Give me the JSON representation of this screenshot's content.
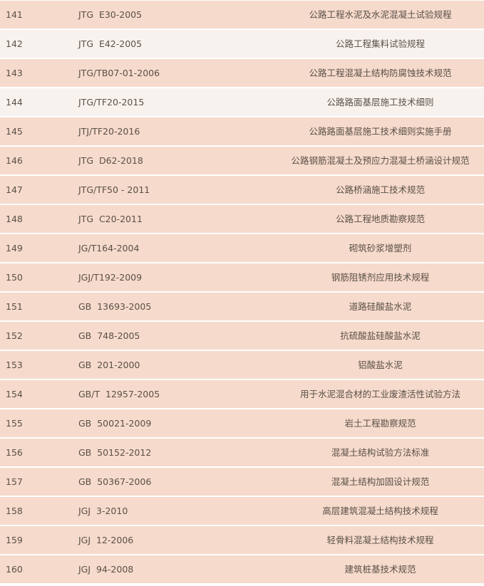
{
  "colors": {
    "row_bg": "#f6dacb",
    "row_alt_bg": "#f8f2ee",
    "text": "#5a5048",
    "separator": "#ffffff"
  },
  "rows": [
    {
      "no": "141",
      "code": "JTG  E30-2005",
      "title": "公路工程水泥及水泥混凝土试验规程",
      "alt": false
    },
    {
      "no": "142",
      "code": "JTG  E42-2005",
      "title": "公路工程集料试验规程",
      "alt": true
    },
    {
      "no": "143",
      "code": "JTG/TB07-01-2006",
      "title": "公路工程混凝土结构防腐蚀技术规范",
      "alt": false
    },
    {
      "no": "144",
      "code": "JTG/TF20-2015",
      "title": "公路路面基层施工技术细则",
      "alt": true
    },
    {
      "no": "145",
      "code": "JTJ/TF20-2016",
      "title": "公路路面基层施工技术细则实施手册",
      "alt": false
    },
    {
      "no": "146",
      "code": "JTG  D62-2018",
      "title": "公路钢筋混凝土及预应力混凝土桥涵设计规范",
      "alt": false
    },
    {
      "no": "147",
      "code": "JTG/TF50 - 2011",
      "title": "公路桥涵施工技术规范",
      "alt": false
    },
    {
      "no": "148",
      "code": "JTG  C20-2011",
      "title": "公路工程地质勘察规范",
      "alt": false
    },
    {
      "no": "149",
      "code": "JG/T164-2004",
      "title": "砌筑砂浆增塑剂",
      "alt": false
    },
    {
      "no": "150",
      "code": "JGJ/T192-2009",
      "title": "钢筋阻锈剂应用技术规程",
      "alt": false
    },
    {
      "no": "151",
      "code": "GB  13693-2005",
      "title": "道路硅酸盐水泥",
      "alt": false
    },
    {
      "no": "152",
      "code": "GB  748-2005",
      "title": "抗硫酸盐硅酸盐水泥",
      "alt": false
    },
    {
      "no": "153",
      "code": "GB  201-2000",
      "title": "铝酸盐水泥",
      "alt": false
    },
    {
      "no": "154",
      "code": "GB/T  12957-2005",
      "title": "用于水泥混合材的工业废渣活性试验方法",
      "alt": false
    },
    {
      "no": "155",
      "code": "GB  50021-2009",
      "title": "岩土工程勘察规范",
      "alt": false
    },
    {
      "no": "156",
      "code": "GB  50152-2012",
      "title": "混凝土结构试验方法标准",
      "alt": false
    },
    {
      "no": "157",
      "code": "GB  50367-2006",
      "title": "混凝土结构加固设计规范",
      "alt": false
    },
    {
      "no": "158",
      "code": "JGJ  3-2010",
      "title": "高层建筑混凝土结构技术规程",
      "alt": false
    },
    {
      "no": "159",
      "code": "JGJ  12-2006",
      "title": "轻骨料混凝土结构技术规程",
      "alt": false
    },
    {
      "no": "160",
      "code": "JGJ  94-2008",
      "title": "建筑桩基技术规范",
      "alt": false
    }
  ]
}
